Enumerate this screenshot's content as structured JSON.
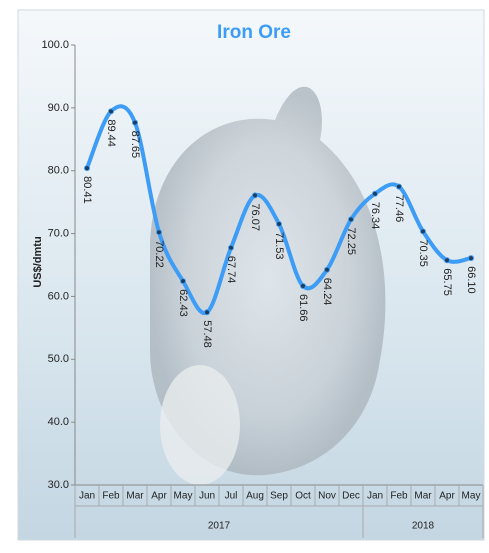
{
  "chart_data": {
    "type": "line",
    "title": "Iron Ore",
    "y_label": "US$/dmtu",
    "categories": [
      "Jan",
      "Feb",
      "Mar",
      "Apr",
      "May",
      "Jun",
      "Jul",
      "Aug",
      "Sep",
      "Oct",
      "Nov",
      "Dec",
      "Jan",
      "Feb",
      "Mar",
      "Apr",
      "May"
    ],
    "groups": [
      {
        "name": "2017",
        "count": 12
      },
      {
        "name": "2018",
        "count": 5
      }
    ],
    "series": [
      {
        "name": "Iron Ore",
        "color": "#3d9cf5",
        "values": [
          80.41,
          89.44,
          87.65,
          70.22,
          62.43,
          57.48,
          67.74,
          76.07,
          71.53,
          61.66,
          64.24,
          72.25,
          76.34,
          77.46,
          70.35,
          65.75,
          66.1
        ],
        "value_labels": [
          "80.41",
          "89.44",
          "87.65",
          "70.22",
          "62.43",
          "57.48",
          "67.74",
          "76.07",
          "71.53",
          "61.66",
          "64.24",
          "72.25",
          "76.34",
          "77.46",
          "70.35",
          "65.75",
          "66.10"
        ]
      }
    ],
    "ylim": [
      30,
      100
    ],
    "yticks": [
      {
        "value": 30,
        "label": "30.0"
      },
      {
        "value": 40,
        "label": "40.0"
      },
      {
        "value": 50,
        "label": "50.0"
      },
      {
        "value": 60,
        "label": "60.0"
      },
      {
        "value": 70,
        "label": "70.0"
      },
      {
        "value": 80,
        "label": "80.0"
      },
      {
        "value": 90,
        "label": "90.0"
      },
      {
        "value": 100,
        "label": "100.0"
      }
    ]
  }
}
